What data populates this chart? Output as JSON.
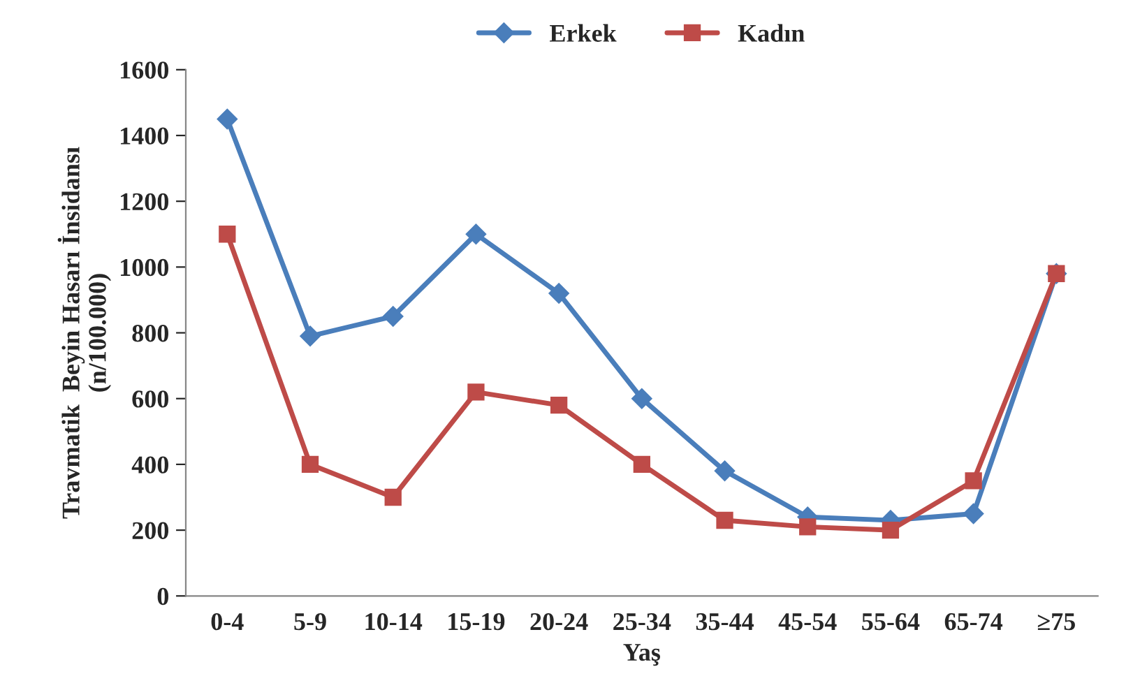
{
  "chart_data": {
    "type": "line",
    "xlabel": "Yaş",
    "ylabel": "Travmatik  Beyin Hasarı İnsidansı\n(n/100.000)",
    "categories": [
      "0-4",
      "5-9",
      "10-14",
      "15-19",
      "20-24",
      "25-34",
      "35-44",
      "45-54",
      "55-64",
      "65-74",
      "≥75"
    ],
    "series": [
      {
        "name": "Erkek",
        "color": "#4a7ebb",
        "marker": "diamond",
        "values": [
          1450,
          790,
          850,
          1100,
          920,
          600,
          380,
          240,
          230,
          250,
          980
        ]
      },
      {
        "name": "Kadın",
        "color": "#be4b48",
        "marker": "square",
        "values": [
          1100,
          400,
          300,
          620,
          580,
          400,
          230,
          210,
          200,
          350,
          980
        ]
      }
    ],
    "ylim": [
      0,
      1600
    ],
    "yticks": [
      0,
      200,
      400,
      600,
      800,
      1000,
      1200,
      1400,
      1600
    ],
    "legend": "top",
    "grid": false,
    "line_style": "solid"
  }
}
